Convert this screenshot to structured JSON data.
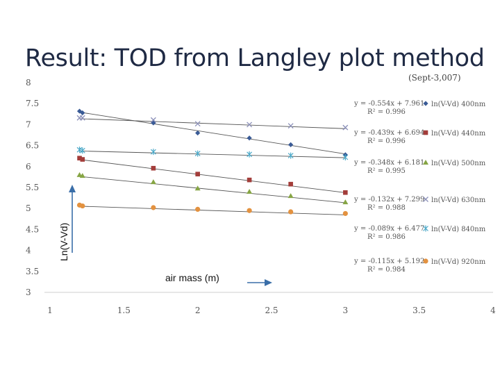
{
  "slide": {
    "title": "Result: TOD from Langley plot method"
  },
  "chart_data": {
    "type": "scatter",
    "subtitle": "(Sept-3,007)",
    "xlabel": "air mass (m)",
    "ylabel": "Ln(V-Vd)",
    "xlim": [
      1,
      4
    ],
    "ylim": [
      3,
      8
    ],
    "xticks": [
      "1",
      "1.5",
      "2",
      "2.5",
      "3",
      "3.5",
      "4"
    ],
    "yticks": [
      "3",
      "3.5",
      "4",
      "4.5",
      "5",
      "5.5",
      "6",
      "6.5",
      "7",
      "7.5",
      "8"
    ],
    "grid": false,
    "legend_position": "right",
    "x": [
      1.2,
      1.22,
      1.7,
      2.0,
      2.35,
      2.63,
      3.0
    ],
    "series": [
      {
        "name": "ln(V-Vd) 400nm",
        "color": "#3a5b96",
        "marker": "diamond",
        "values": [
          7.32,
          7.28,
          7.04,
          6.8,
          6.68,
          6.52,
          6.28
        ],
        "fit": {
          "slope": -0.554,
          "intercept": 7.961
        },
        "equation": "y = -0.554x + 7.961",
        "r2": "R² = 0.996"
      },
      {
        "name": "ln(V-Vd) 440nm",
        "color": "#a33d3a",
        "marker": "square",
        "values": [
          6.2,
          6.17,
          5.96,
          5.82,
          5.68,
          5.58,
          5.38
        ],
        "fit": {
          "slope": -0.439,
          "intercept": 6.694
        },
        "equation": "y = -0.439x + 6.694",
        "r2": "R² = 0.996"
      },
      {
        "name": "ln(V-Vd) 500nm",
        "color": "#86a544",
        "marker": "triangle",
        "values": [
          5.8,
          5.78,
          5.63,
          5.48,
          5.4,
          5.3,
          5.15
        ],
        "fit": {
          "slope": -0.348,
          "intercept": 6.181
        },
        "equation": "y = -0.348x + 6.181",
        "r2": "R² = 0.995"
      },
      {
        "name": "ln(V-Vd) 630nm",
        "color": "#8a8fb8",
        "marker": "x",
        "values": [
          7.16,
          7.16,
          7.11,
          7.02,
          7.0,
          6.97,
          6.93
        ],
        "fit": {
          "slope": -0.132,
          "intercept": 7.299
        },
        "equation": "y = -0.132x + 7.299",
        "r2": "R² = 0.988"
      },
      {
        "name": "ln(V-Vd) 840nm",
        "color": "#4aa8c8",
        "marker": "star",
        "values": [
          6.4,
          6.38,
          6.35,
          6.31,
          6.29,
          6.26,
          6.22
        ],
        "fit": {
          "slope": -0.089,
          "intercept": 6.477
        },
        "equation": "y = -0.089x + 6.477",
        "r2": "R² = 0.986"
      },
      {
        "name": "ln(V-Vd) 920nm",
        "color": "#e39240",
        "marker": "circle",
        "values": [
          5.08,
          5.06,
          5.02,
          4.98,
          4.95,
          4.92,
          4.88
        ],
        "fit": {
          "slope": -0.115,
          "intercept": 5.192
        },
        "equation": "y = -0.115x + 5.192",
        "r2": "R² = 0.984"
      }
    ]
  }
}
